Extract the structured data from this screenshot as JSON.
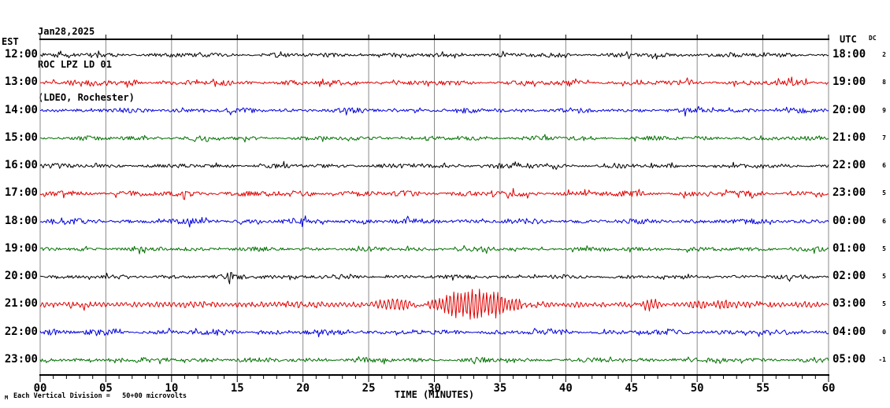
{
  "header": {
    "date": "Jan28,2025",
    "station": "ROC LPZ LD 01",
    "location": "(LDEO, Rochester)"
  },
  "axis": {
    "left_timezone": "EST",
    "right_timezone": "UTC",
    "dc_label": "DC",
    "x_title": "TIME (MINUTES)",
    "x_major_labels": [
      "00",
      "05",
      "10",
      "15",
      "20",
      "25",
      "30",
      "35",
      "40",
      "45",
      "50",
      "55",
      "60"
    ],
    "x_major_step_minutes": 5,
    "x_minor_step_minutes": 1
  },
  "footer": {
    "corner_glyph": "M",
    "scale_note": "Each Vertical Division =   50+00 microvolts"
  },
  "colors": {
    "background": "#ffffff",
    "grid": "#8a8a8a",
    "axis": "#000000",
    "text": "#000000",
    "trace_cycle": [
      "#000000",
      "#e00000",
      "#0000dd",
      "#007000"
    ]
  },
  "chart_data": {
    "type": "line",
    "subtype": "seismogram-helicorder",
    "x_unit": "minutes",
    "x_range": [
      0,
      60
    ],
    "minutes_per_row": 60,
    "vertical_division_microvolts": 50.0,
    "rows": [
      {
        "est": "12:00",
        "utc": "18:00",
        "dc": "2",
        "color": "#000000",
        "noise_amp": 2.6,
        "events": []
      },
      {
        "est": "13:00",
        "utc": "19:00",
        "dc": "8",
        "color": "#e00000",
        "noise_amp": 3.0,
        "events": [
          {
            "type": "burst",
            "start": 0,
            "end": 6,
            "amp": 2.5
          }
        ]
      },
      {
        "est": "14:00",
        "utc": "20:00",
        "dc": "9",
        "color": "#0000dd",
        "noise_amp": 2.8,
        "events": []
      },
      {
        "est": "15:00",
        "utc": "21:00",
        "dc": "7",
        "color": "#007000",
        "noise_amp": 2.6,
        "events": [
          {
            "type": "burst",
            "start": 11.5,
            "end": 14,
            "amp": 3.5
          }
        ]
      },
      {
        "est": "16:00",
        "utc": "22:00",
        "dc": "6",
        "color": "#000000",
        "noise_amp": 2.6,
        "events": []
      },
      {
        "est": "17:00",
        "utc": "23:00",
        "dc": "5",
        "color": "#e00000",
        "noise_amp": 3.4,
        "events": []
      },
      {
        "est": "18:00",
        "utc": "00:00",
        "dc": "6",
        "color": "#0000dd",
        "noise_amp": 3.0,
        "events": [
          {
            "type": "burst",
            "start": 0,
            "end": 2.5,
            "amp": 3.5
          }
        ]
      },
      {
        "est": "19:00",
        "utc": "01:00",
        "dc": "5",
        "color": "#007000",
        "noise_amp": 2.6,
        "events": []
      },
      {
        "est": "20:00",
        "utc": "02:00",
        "dc": "5",
        "color": "#000000",
        "noise_amp": 2.5,
        "events": [
          {
            "type": "burst",
            "start": 13.9,
            "end": 14.7,
            "amp": 13
          },
          {
            "type": "burst",
            "start": 14.7,
            "end": 19,
            "amp": 1.8
          }
        ]
      },
      {
        "est": "21:00",
        "utc": "03:00",
        "dc": "5",
        "color": "#e00000",
        "noise_amp": 2.2,
        "events": [
          {
            "type": "wave",
            "start": 0,
            "end": 60,
            "amp": 2.3,
            "freq": 3.0,
            "flat": true
          },
          {
            "type": "wave",
            "start": 24.8,
            "end": 29.6,
            "amp": 5,
            "freq": 3.2
          },
          {
            "type": "wave",
            "start": 29.4,
            "end": 36.8,
            "amp": 18,
            "freq": 3.6
          },
          {
            "type": "wave",
            "start": 36.8,
            "end": 40,
            "amp": 4,
            "freq": 3.0
          },
          {
            "type": "wave",
            "start": 44.3,
            "end": 48.3,
            "amp": 4,
            "freq": 3.4
          },
          {
            "type": "wave",
            "start": 48.8,
            "end": 53.5,
            "amp": 4,
            "freq": 3.4
          }
        ]
      },
      {
        "est": "22:00",
        "utc": "04:00",
        "dc": "0",
        "color": "#0000dd",
        "noise_amp": 3.2,
        "events": [
          {
            "type": "burst",
            "start": 0,
            "end": 2,
            "amp": 3
          },
          {
            "type": "burst",
            "start": 4.8,
            "end": 6.6,
            "amp": 3
          }
        ]
      },
      {
        "est": "23:00",
        "utc": "05:00",
        "dc": "-1",
        "color": "#007000",
        "noise_amp": 2.7,
        "events": [
          {
            "type": "burst",
            "start": 5,
            "end": 6.5,
            "amp": 2.5
          },
          {
            "type": "burst",
            "start": 12,
            "end": 14,
            "amp": 2.5
          }
        ]
      }
    ]
  }
}
